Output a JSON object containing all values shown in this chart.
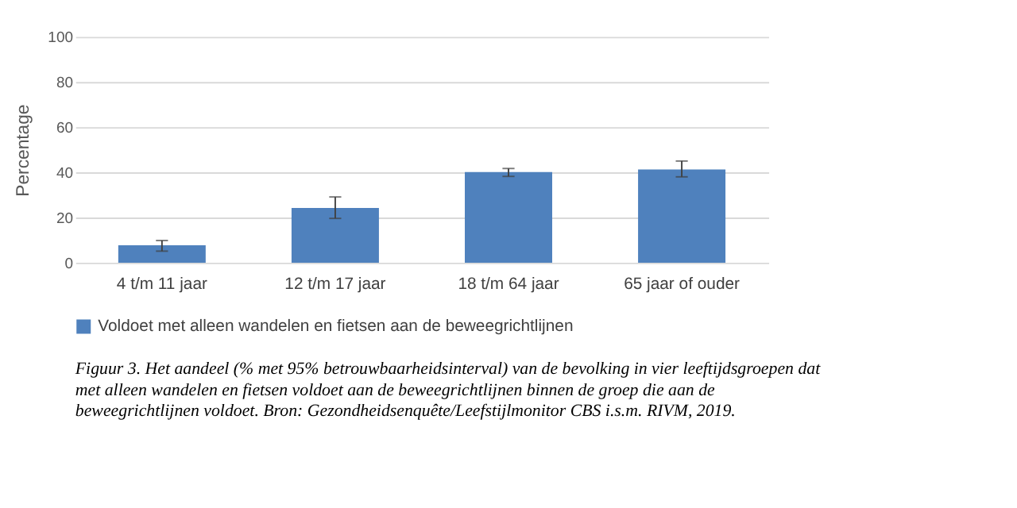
{
  "chart_data": {
    "type": "bar",
    "ylabel": "Percentage",
    "categories": [
      "4 t/m 11 jaar",
      "12 t/m 17 jaar",
      "18 t/m 64 jaar",
      "65 jaar of ouder"
    ],
    "series": [
      {
        "name": "Voldoet met alleen wandelen en fietsen aan de beweegrichtlijnen",
        "color": "#4f81bd",
        "values": [
          7.7,
          24.2,
          40.1,
          41.3
        ],
        "errors": [
          [
            5.1,
            9.8
          ],
          [
            19.6,
            29.1
          ],
          [
            38.2,
            41.7
          ],
          [
            38.0,
            45.0
          ]
        ]
      }
    ],
    "ylim": [
      0,
      100
    ],
    "yticks": [
      0,
      20,
      40,
      60,
      80,
      100
    ],
    "grid": "y",
    "legend": "bottom",
    "annotations": [
      "Figuur 3. Het aandeel (% met 95% betrouwbaarheidsinterval) van de bevolking in vier leeftijdsgroepen dat met alleen wandelen en fietsen voldoet aan de beweegrichtlijnen binnen de groep die aan de beweegrichtlijnen voldoet. Bron: Gezondheidsenquête/Leefstijlmonitor CBS i.s.m. RIVM, 2019."
    ]
  }
}
